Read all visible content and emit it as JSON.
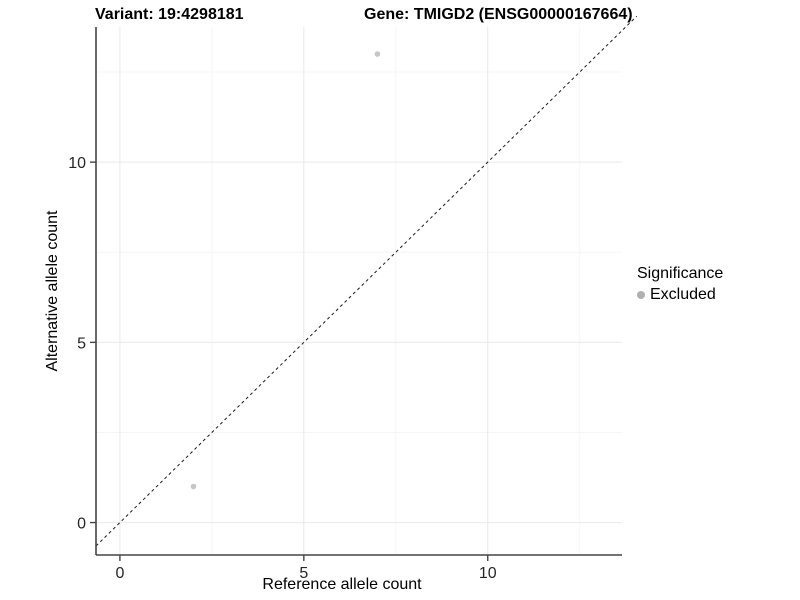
{
  "titles": {
    "variant": "Variant: 19:4298181",
    "gene": "Gene: TMIGD2 (ENSG00000167664)"
  },
  "axes": {
    "x_label": "Reference allele count",
    "y_label": "Alternative allele count"
  },
  "legend": {
    "title": "Significance",
    "items": [
      {
        "label": "Excluded",
        "color": "#b0b0b0"
      }
    ]
  },
  "colors": {
    "point": "#c6c6c6",
    "grid_major": "#e9e9e9",
    "grid_minor": "#f5f5f5",
    "axis_line": "#454545",
    "dashed_line": "#1a1a1a",
    "tick_label": "#262626"
  },
  "chart_data": {
    "type": "scatter",
    "title": "Variant: 19:4298181 — Gene: TMIGD2 (ENSG00000167664)",
    "xlabel": "Reference allele count",
    "ylabel": "Alternative allele count",
    "xlim": [
      -0.65,
      13.65
    ],
    "ylim": [
      -0.9,
      13.75
    ],
    "x_major_ticks": [
      0,
      5,
      10
    ],
    "y_major_ticks": [
      0,
      5,
      10
    ],
    "x_minor_ticks": [
      2.5,
      7.5,
      12.5
    ],
    "y_minor_ticks": [
      2.5,
      7.5,
      12.5
    ],
    "grid": true,
    "legend_position": "right",
    "reference_line": {
      "type": "identity y=x",
      "style": "dashed"
    },
    "series": [
      {
        "name": "Excluded",
        "points": [
          {
            "x": 2,
            "y": 1
          },
          {
            "x": 7,
            "y": 13
          }
        ]
      }
    ]
  }
}
